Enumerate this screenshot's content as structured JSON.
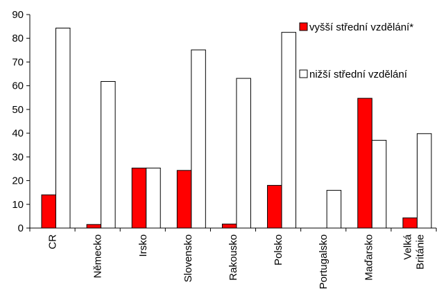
{
  "chart_data": {
    "type": "bar",
    "title": "",
    "xlabel": "",
    "ylabel": "",
    "ylim": [
      0,
      90
    ],
    "yticks": [
      0,
      10,
      20,
      30,
      40,
      50,
      60,
      70,
      80,
      90
    ],
    "grid": false,
    "legend_position": "right, stacked top-right",
    "categories": [
      "CR",
      "Německo",
      "Irsko",
      "Slovensko",
      "Rakousko",
      "Polsko",
      "Portugalsko",
      "Maďarsko",
      "Velká Británie"
    ],
    "category_lines": [
      [
        "CR"
      ],
      [
        "Německo"
      ],
      [
        "Irsko"
      ],
      [
        "Slovensko"
      ],
      [
        "Rakousko"
      ],
      [
        "Polsko"
      ],
      [
        "Portugalsko"
      ],
      [
        "Maďarsko"
      ],
      [
        "Velká",
        "Británie"
      ]
    ],
    "series": [
      {
        "name": "vyšší střední vzdělání*",
        "color": "#ff0000",
        "values": [
          14,
          1.5,
          25.3,
          24.3,
          1.7,
          18,
          0,
          54.7,
          4.3
        ]
      },
      {
        "name": "nižší střední vzdělání",
        "color": "#ffffff",
        "values": [
          84.3,
          61.8,
          25.3,
          75.1,
          63.1,
          82.5,
          15.9,
          37,
          39.8
        ]
      }
    ]
  }
}
